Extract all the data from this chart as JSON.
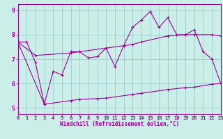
{
  "xlabel": "Windchill (Refroidissement éolien,°C)",
  "background_color": "#cceee8",
  "line_color": "#990099",
  "grid_color": "#99cccc",
  "xmin": 0,
  "xmax": 23,
  "ymin": 4.75,
  "ymax": 9.25,
  "yticks": [
    5,
    6,
    7,
    8,
    9
  ],
  "xticks": [
    0,
    1,
    2,
    3,
    4,
    5,
    6,
    7,
    8,
    9,
    10,
    11,
    12,
    13,
    14,
    15,
    16,
    17,
    18,
    19,
    20,
    21,
    22,
    23
  ],
  "line1_x": [
    0,
    1,
    2,
    3,
    4,
    5,
    6,
    7,
    8,
    9,
    10,
    11,
    12,
    13,
    14,
    15,
    16,
    17,
    18,
    19,
    20,
    21,
    22,
    23
  ],
  "line1_y": [
    7.7,
    7.7,
    6.85,
    5.15,
    6.5,
    6.35,
    7.3,
    7.3,
    7.05,
    7.1,
    7.45,
    6.7,
    7.55,
    8.3,
    8.6,
    8.95,
    8.3,
    8.7,
    8.0,
    8.0,
    8.2,
    7.3,
    7.0,
    6.0
  ],
  "line2_x": [
    0,
    2,
    6,
    7,
    10,
    13,
    14,
    17,
    19,
    20,
    22,
    23
  ],
  "line2_y": [
    7.7,
    7.15,
    7.25,
    7.3,
    7.45,
    7.6,
    7.7,
    7.95,
    8.0,
    8.0,
    8.0,
    7.95
  ],
  "line3_x": [
    0,
    3,
    6,
    7,
    9,
    10,
    13,
    14,
    17,
    19,
    20,
    22,
    23
  ],
  "line3_y": [
    7.7,
    5.15,
    5.3,
    5.35,
    5.38,
    5.4,
    5.55,
    5.6,
    5.75,
    5.83,
    5.85,
    5.97,
    6.0
  ]
}
